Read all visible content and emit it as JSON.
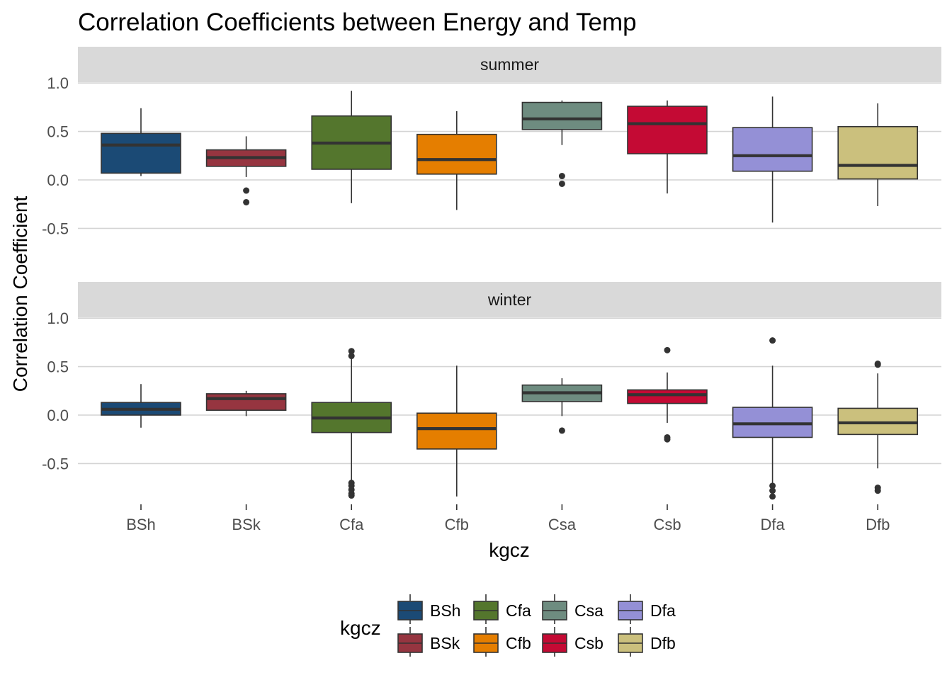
{
  "chart_data": {
    "type": "boxplot",
    "title": "Correlation Coefficients between Energy and Temp",
    "xlabel": "kgcz",
    "ylabel": "Correlation Coefficient",
    "categories": [
      "BSh",
      "BSk",
      "Cfa",
      "Cfb",
      "Csa",
      "Csb",
      "Dfa",
      "Dfb"
    ],
    "colors": {
      "BSh": "#1b4a75",
      "BSk": "#963540",
      "Cfa": "#54762d",
      "Cfb": "#e57e00",
      "Csa": "#6e8c80",
      "Csb": "#c40a34",
      "Dfa": "#9490d6",
      "Dfb": "#cbc07d"
    },
    "yticks": [
      1.0,
      0.5,
      0.0,
      -0.5
    ],
    "ytick_labels": [
      "1.0",
      "0.5",
      "0.0",
      "-0.5"
    ],
    "ylim": [
      -0.95,
      1.35
    ],
    "grid": true,
    "legend": {
      "title": "kgcz",
      "position": "bottom",
      "entries": [
        "BSh",
        "BSk",
        "Cfa",
        "Cfb",
        "Csa",
        "Csb",
        "Dfa",
        "Dfb"
      ]
    },
    "panels": [
      {
        "label": "summer",
        "boxes": [
          {
            "category": "BSh",
            "min": 0.04,
            "q1": 0.07,
            "median": 0.36,
            "q3": 0.48,
            "max": 0.74,
            "outliers": []
          },
          {
            "category": "BSk",
            "min": 0.03,
            "q1": 0.14,
            "median": 0.23,
            "q3": 0.31,
            "max": 0.45,
            "outliers": [
              -0.11,
              -0.23
            ]
          },
          {
            "category": "Cfa",
            "min": -0.24,
            "q1": 0.11,
            "median": 0.38,
            "q3": 0.66,
            "max": 0.92,
            "outliers": []
          },
          {
            "category": "Cfb",
            "min": -0.31,
            "q1": 0.06,
            "median": 0.21,
            "q3": 0.47,
            "max": 0.71,
            "outliers": []
          },
          {
            "category": "Csa",
            "min": 0.36,
            "q1": 0.52,
            "median": 0.63,
            "q3": 0.8,
            "max": 0.82,
            "outliers": [
              0.04,
              -0.04
            ]
          },
          {
            "category": "Csb",
            "min": -0.14,
            "q1": 0.27,
            "median": 0.58,
            "q3": 0.76,
            "max": 0.82,
            "outliers": []
          },
          {
            "category": "Dfa",
            "min": -0.44,
            "q1": 0.09,
            "median": 0.25,
            "q3": 0.54,
            "max": 0.86,
            "outliers": []
          },
          {
            "category": "Dfb",
            "min": -0.27,
            "q1": 0.01,
            "median": 0.15,
            "q3": 0.55,
            "max": 0.79,
            "outliers": []
          }
        ]
      },
      {
        "label": "winter",
        "boxes": [
          {
            "category": "BSh",
            "min": -0.13,
            "q1": 0.0,
            "median": 0.06,
            "q3": 0.13,
            "max": 0.32,
            "outliers": []
          },
          {
            "category": "BSk",
            "min": -0.01,
            "q1": 0.05,
            "median": 0.17,
            "q3": 0.22,
            "max": 0.25,
            "outliers": []
          },
          {
            "category": "Cfa",
            "min": -0.7,
            "q1": -0.18,
            "median": -0.03,
            "q3": 0.13,
            "max": 0.58,
            "outliers": [
              0.66,
              0.61,
              -0.7,
              -0.73,
              -0.77,
              -0.81,
              -0.83
            ]
          },
          {
            "category": "Cfb",
            "min": -0.84,
            "q1": -0.35,
            "median": -0.14,
            "q3": 0.02,
            "max": 0.51,
            "outliers": []
          },
          {
            "category": "Csa",
            "min": -0.01,
            "q1": 0.14,
            "median": 0.23,
            "q3": 0.31,
            "max": 0.38,
            "outliers": [
              -0.16
            ]
          },
          {
            "category": "Csb",
            "min": -0.08,
            "q1": 0.12,
            "median": 0.21,
            "q3": 0.26,
            "max": 0.44,
            "outliers": [
              0.67,
              -0.23,
              -0.25
            ]
          },
          {
            "category": "Dfa",
            "min": -0.7,
            "q1": -0.23,
            "median": -0.09,
            "q3": 0.08,
            "max": 0.51,
            "outliers": [
              0.77,
              -0.73,
              -0.78,
              -0.84
            ]
          },
          {
            "category": "Dfb",
            "min": -0.55,
            "q1": -0.2,
            "median": -0.08,
            "q3": 0.07,
            "max": 0.43,
            "outliers": [
              0.52,
              0.53,
              -0.75,
              -0.78
            ]
          }
        ]
      }
    ]
  }
}
